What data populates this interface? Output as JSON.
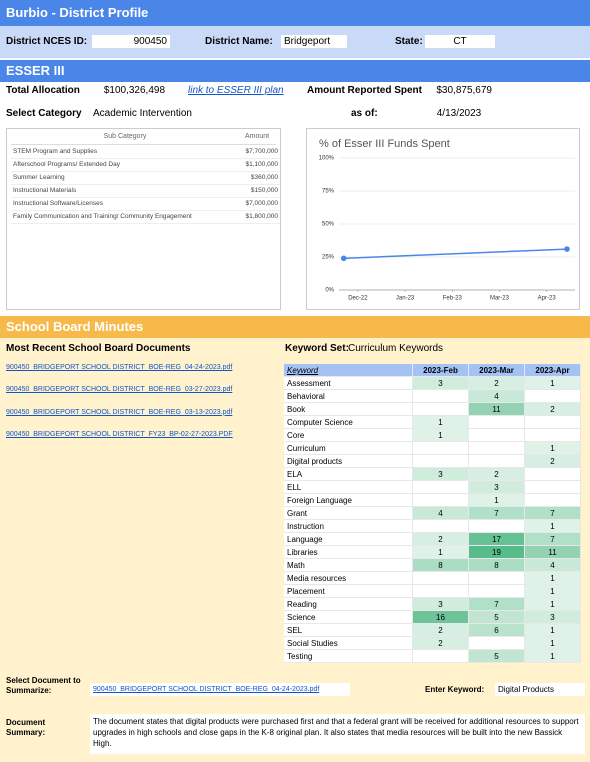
{
  "header": {
    "title": "Burbio - District Profile"
  },
  "district": {
    "nces_id_label": "District NCES ID:",
    "nces_id": "900450",
    "name_label": "District Name:",
    "name": "Bridgeport",
    "state_label": "State:",
    "state": "CT"
  },
  "esser": {
    "title": "ESSER III",
    "total_allocation_label": "Total Allocation",
    "total_allocation": "$100,326,498",
    "plan_link": "link to ESSER III plan",
    "amount_spent_label": "Amount Reported Spent",
    "amount_spent": "$30,875,679",
    "category_label": "Select Category",
    "category": "Academic Intervention",
    "as_of_label": "as of:",
    "as_of": "4/13/2023"
  },
  "subcategory_table": {
    "headers": [
      "Sub Category",
      "Amount"
    ],
    "rows": [
      [
        "STEM Program and Supplies",
        "$7,700,000"
      ],
      [
        "Afterschool Programs/ Extended Day",
        "$1,100,000"
      ],
      [
        "Summer Learning",
        "$360,000"
      ],
      [
        "Instructional Materials",
        "$150,000"
      ],
      [
        "Instructional Software/Licenses",
        "$7,000,000"
      ],
      [
        "Family Communication and Training/ Community Engagement",
        "$1,800,000"
      ]
    ]
  },
  "chart_data": {
    "type": "line",
    "title": "% of Esser III Funds Spent",
    "color": "#4a86e8",
    "x": [
      -0.3,
      4.43
    ],
    "values": [
      24,
      31
    ],
    "xlim": [
      -0.4,
      4.6
    ],
    "xticks": [
      {
        "value": 0,
        "label": "Dec-22"
      },
      {
        "value": 1,
        "label": "Jan-23"
      },
      {
        "value": 2,
        "label": "Feb-23"
      },
      {
        "value": 3,
        "label": "Mar-23"
      },
      {
        "value": 4,
        "label": "Apr-23"
      }
    ],
    "ylim": [
      0,
      100
    ],
    "yticks": [
      {
        "value": 0,
        "label": "0%"
      },
      {
        "value": 25,
        "label": "25%"
      },
      {
        "value": 50,
        "label": "50%"
      },
      {
        "value": 75,
        "label": "75%"
      },
      {
        "value": 100,
        "label": "100%"
      }
    ],
    "grid": true
  },
  "board": {
    "title": "School Board Minutes",
    "documents_heading": "Most Recent School Board Documents",
    "keyword_set_label": "Keyword Set:",
    "keyword_set": "Curriculum Keywords",
    "documents": [
      "900450_BRIDGEPORT SCHOOL DISTRICT_BOE-REG_04-24-2023.pdf",
      "900450_BRIDGEPORT SCHOOL DISTRICT_BOE-REG_03-27-2023.pdf",
      "900450_BRIDGEPORT SCHOOL DISTRICT_BOE-REG_03-13-2023.pdf",
      "900450_BRIDGEPORT SCHOOL DISTRICT_FY23_BP-02-27-2023.PDF"
    ],
    "keyword_table": {
      "headers": [
        "Keyword",
        "2023-Feb",
        "2023-Mar",
        "2023-Apr"
      ],
      "rows": [
        {
          "keyword": "Assessment",
          "values": [
            3,
            2,
            1
          ]
        },
        {
          "keyword": "Behavioral",
          "values": [
            null,
            4,
            null
          ]
        },
        {
          "keyword": "Book",
          "values": [
            null,
            11,
            2
          ]
        },
        {
          "keyword": "Computer Science",
          "values": [
            1,
            null,
            null
          ]
        },
        {
          "keyword": "Core",
          "values": [
            1,
            null,
            null
          ]
        },
        {
          "keyword": "Curriculum",
          "values": [
            null,
            null,
            1
          ]
        },
        {
          "keyword": "Digital products",
          "values": [
            null,
            null,
            2
          ]
        },
        {
          "keyword": "ELA",
          "values": [
            3,
            2,
            null
          ]
        },
        {
          "keyword": "ELL",
          "values": [
            null,
            3,
            null
          ]
        },
        {
          "keyword": "Foreign Language",
          "values": [
            null,
            1,
            null
          ]
        },
        {
          "keyword": "Grant",
          "values": [
            4,
            7,
            7
          ]
        },
        {
          "keyword": "Instruction",
          "values": [
            null,
            null,
            1
          ]
        },
        {
          "keyword": "Language",
          "values": [
            2,
            17,
            7
          ]
        },
        {
          "keyword": "Libraries",
          "values": [
            1,
            19,
            11
          ]
        },
        {
          "keyword": "Math",
          "values": [
            8,
            8,
            4
          ]
        },
        {
          "keyword": "Media resources",
          "values": [
            null,
            null,
            1
          ]
        },
        {
          "keyword": "Placement",
          "values": [
            null,
            null,
            1
          ]
        },
        {
          "keyword": "Reading",
          "values": [
            3,
            7,
            1
          ]
        },
        {
          "keyword": "Science",
          "values": [
            16,
            5,
            3
          ]
        },
        {
          "keyword": "SEL",
          "values": [
            2,
            6,
            1
          ]
        },
        {
          "keyword": "Social Studies",
          "values": [
            2,
            null,
            1
          ]
        },
        {
          "keyword": "Testing",
          "values": [
            null,
            5,
            1
          ]
        }
      ]
    },
    "select_doc_label": "Select Document to Summarize:",
    "selected_doc": "900450_BRIDGEPORT SCHOOL DISTRICT_BOE-REG_04-24-2023.pdf",
    "keyword_label": "Enter Keyword:",
    "keyword": "Digital Products",
    "summary_label": "Document Summary:",
    "summary": "The document states that digital products were purchased first and that a federal grant will be received for additional resources to support upgrades in high schools and close gaps in the K-8 original plan. It also states that media resources will be built into the new Bassick High."
  }
}
